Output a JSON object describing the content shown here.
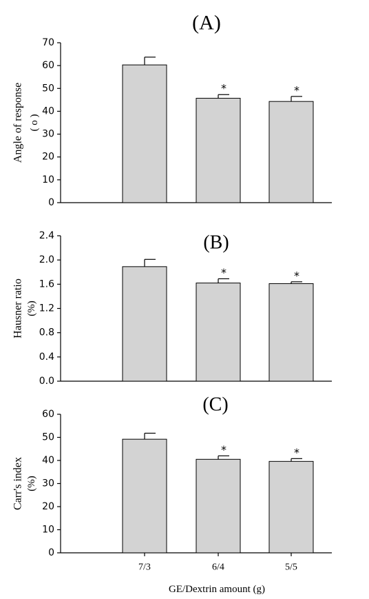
{
  "figure": {
    "xlabel": "GE/Dextrin amount (g)",
    "categories": [
      "7/3",
      "6/4",
      "5/5"
    ]
  },
  "colors": {
    "bar_fill": "#d3d3d3",
    "bar_stroke": "#000000",
    "axis": "#000000"
  },
  "chart_data": [
    {
      "type": "bar",
      "panel_label": "(A)",
      "ylabel": "Angle of response",
      "yunit": "( o )",
      "categories": [
        "7/3",
        "6/4",
        "5/5"
      ],
      "values": [
        60.3,
        45.7,
        44.3
      ],
      "errors": [
        3.4,
        1.6,
        2.2
      ],
      "significance": [
        "",
        "*",
        "*"
      ],
      "ylim": [
        0,
        70
      ],
      "yticks": [
        "0",
        "10",
        "20",
        "30",
        "40",
        "50",
        "60",
        "70"
      ],
      "grid": false,
      "show_x_ticks": false
    },
    {
      "type": "bar",
      "panel_label": "(B)",
      "ylabel": "Hausner ratio",
      "yunit": "(%)",
      "categories": [
        "7/3",
        "6/4",
        "5/5"
      ],
      "values": [
        1.89,
        1.62,
        1.61
      ],
      "errors": [
        0.12,
        0.07,
        0.03
      ],
      "significance": [
        "",
        "*",
        "*"
      ],
      "ylim": [
        0,
        2.4
      ],
      "yticks": [
        "0.0",
        "0.4",
        "0.8",
        "1.2",
        "1.6",
        "2.0",
        "2.4"
      ],
      "grid": false,
      "show_x_ticks": false
    },
    {
      "type": "bar",
      "panel_label": "(C)",
      "ylabel": "Carr's index",
      "yunit": "(%)",
      "categories": [
        "7/3",
        "6/4",
        "5/5"
      ],
      "values": [
        49.2,
        40.5,
        39.6
      ],
      "errors": [
        2.6,
        1.5,
        1.2
      ],
      "significance": [
        "",
        "*",
        "*"
      ],
      "ylim": [
        0,
        60
      ],
      "yticks": [
        "0",
        "10",
        "20",
        "30",
        "40",
        "50",
        "60"
      ],
      "grid": false,
      "show_x_ticks": true
    }
  ]
}
